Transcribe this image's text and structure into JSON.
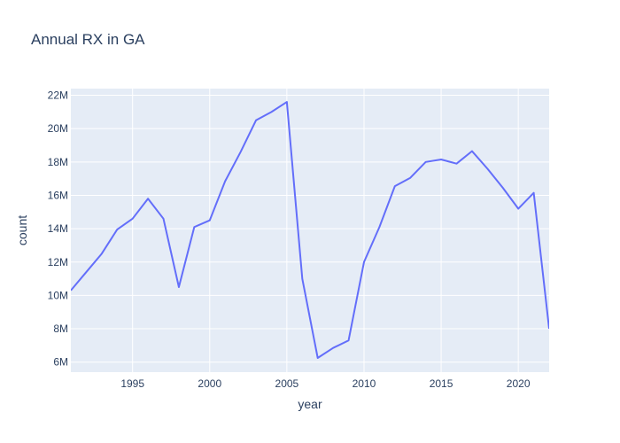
{
  "chart_data": {
    "type": "line",
    "title": "Annual RX in GA",
    "xlabel": "year",
    "ylabel": "count",
    "xlim": [
      1991,
      2022
    ],
    "ylim": [
      5400000,
      22400000
    ],
    "x_ticks": [
      1995,
      2000,
      2005,
      2010,
      2015,
      2020
    ],
    "x_tick_labels": [
      "1995",
      "2000",
      "2005",
      "2010",
      "2015",
      "2020"
    ],
    "y_ticks": [
      6000000,
      8000000,
      10000000,
      12000000,
      14000000,
      16000000,
      18000000,
      20000000,
      22000000
    ],
    "y_tick_labels": [
      "6M",
      "8M",
      "10M",
      "12M",
      "14M",
      "16M",
      "18M",
      "20M",
      "22M"
    ],
    "grid": true,
    "colors": {
      "line": "#636efa",
      "plot_bg": "#e5ecf6",
      "grid": "#ffffff",
      "text": "#2a3f5f"
    },
    "series": [
      {
        "x": [
          1991,
          1992,
          1993,
          1994,
          1995,
          1996,
          1997,
          1998,
          1999,
          2000,
          2001,
          2002,
          2003,
          2004,
          2005,
          2006,
          2007,
          2008,
          2009,
          2010,
          2011,
          2012,
          2013,
          2014,
          2015,
          2016,
          2017,
          2018,
          2019,
          2020,
          2021,
          2022
        ],
        "values": [
          10300000,
          11400000,
          12500000,
          13950000,
          14600000,
          15800000,
          14600000,
          10500000,
          14100000,
          14500000,
          16850000,
          18600000,
          20500000,
          21000000,
          21600000,
          11000000,
          6250000,
          6850000,
          7300000,
          12000000,
          14100000,
          16550000,
          17050000,
          18000000,
          18150000,
          17900000,
          18650000,
          17600000,
          16450000,
          15200000,
          16150000,
          8000000
        ]
      }
    ]
  }
}
